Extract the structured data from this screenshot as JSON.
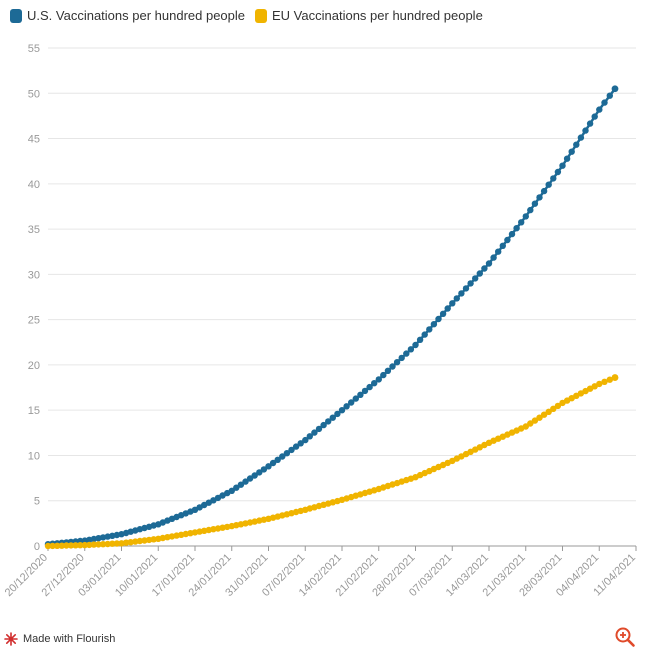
{
  "legend": [
    {
      "label": "U.S. Vaccinations per hundred people",
      "color": "#1d6a96"
    },
    {
      "label": "EU Vaccinations per hundred people",
      "color": "#f0b400"
    }
  ],
  "footer": {
    "label": "Made with Flourish",
    "icon": "flourish-logo-icon"
  },
  "zoom_icon": "zoom-in-icon",
  "chart_data": {
    "type": "line",
    "title": "",
    "xlabel": "",
    "ylabel": "",
    "ylim": [
      0,
      55
    ],
    "yticks": [
      0,
      5,
      10,
      15,
      20,
      25,
      30,
      35,
      40,
      45,
      50,
      55
    ],
    "xlim": [
      "20/12/2020",
      "11/04/2021"
    ],
    "xticks": [
      "20/12/2020",
      "27/12/2020",
      "03/01/2021",
      "10/01/2021",
      "17/01/2021",
      "24/01/2021",
      "31/01/2021",
      "07/02/2021",
      "14/02/2021",
      "21/02/2021",
      "28/02/2021",
      "07/03/2021",
      "14/03/2021",
      "21/03/2021",
      "28/03/2021",
      "04/04/2021",
      "11/04/2021"
    ],
    "grid": true,
    "markers": true,
    "x": [
      "20/12/2020",
      "27/12/2020",
      "03/01/2021",
      "10/01/2021",
      "17/01/2021",
      "24/01/2021",
      "31/01/2021",
      "07/02/2021",
      "14/02/2021",
      "21/02/2021",
      "28/02/2021",
      "07/03/2021",
      "14/03/2021",
      "21/03/2021",
      "28/03/2021",
      "04/04/2021",
      "07/04/2021"
    ],
    "series": [
      {
        "name": "U.S. Vaccinations per hundred people",
        "color": "#1d6a96",
        "values": [
          0.2,
          0.6,
          1.3,
          2.4,
          4.0,
          6.1,
          8.8,
          11.7,
          15.0,
          18.4,
          22.2,
          26.8,
          31.2,
          36.4,
          42.0,
          48.2,
          50.5
        ]
      },
      {
        "name": "EU Vaccinations per hundred people",
        "color": "#f0b400",
        "values": [
          0.0,
          0.1,
          0.3,
          0.8,
          1.5,
          2.2,
          3.0,
          4.0,
          5.1,
          6.3,
          7.6,
          9.4,
          11.4,
          13.2,
          15.8,
          17.9,
          18.6
        ]
      }
    ]
  }
}
